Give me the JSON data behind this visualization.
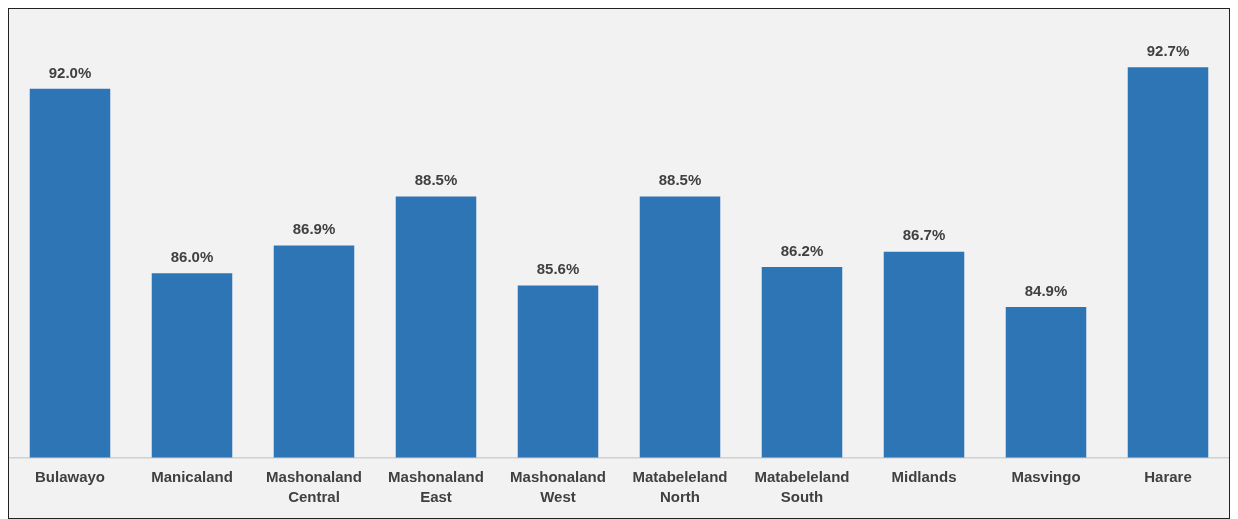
{
  "chart_data": {
    "type": "bar",
    "categories": [
      "Bulawayo",
      "Manicaland",
      "Mashonaland Central",
      "Mashonaland East",
      "Mashonaland West",
      "Matabeleland North",
      "Matabeleland South",
      "Midlands",
      "Masvingo",
      "Harare"
    ],
    "values": [
      92.0,
      86.0,
      86.9,
      88.5,
      85.6,
      88.5,
      86.2,
      86.7,
      84.9,
      92.7
    ],
    "value_labels": [
      "92.0%",
      "86.0%",
      "86.9%",
      "88.5%",
      "85.6%",
      "88.5%",
      "86.2%",
      "86.7%",
      "84.9%",
      "92.7%"
    ],
    "color": "#2e75b6",
    "ylim": [
      80,
      94.6
    ],
    "tick_labels": "x",
    "grid": false,
    "legend": false
  }
}
